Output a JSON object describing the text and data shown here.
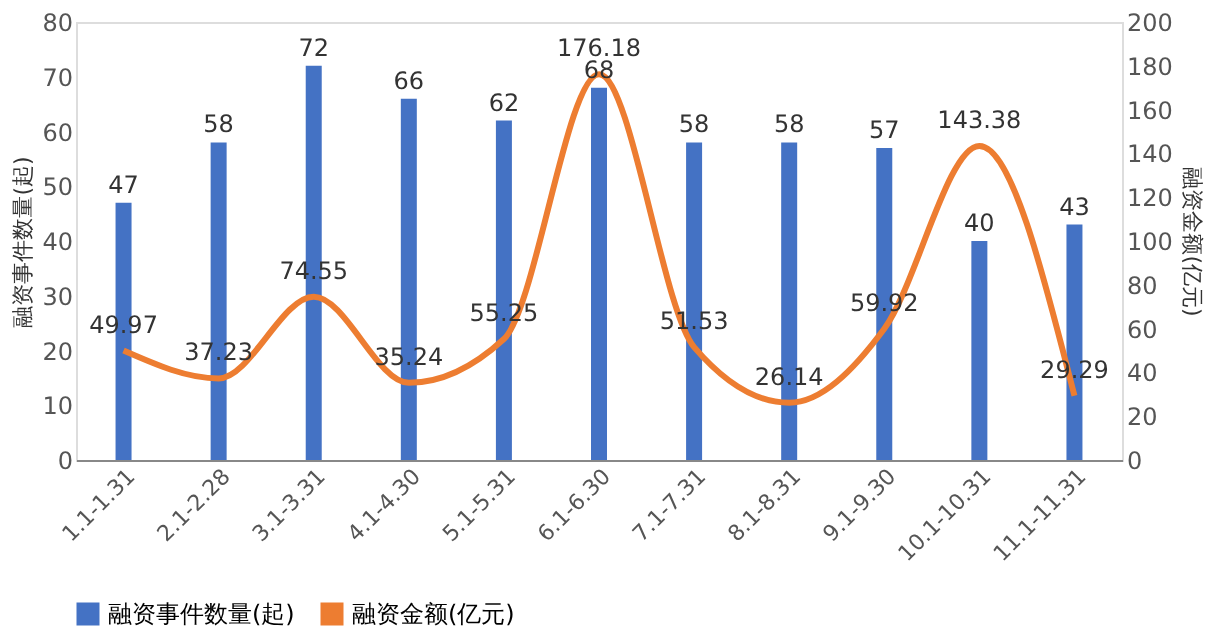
{
  "chart_data": {
    "type": "bar",
    "categories": [
      "1.1-1.31",
      "2.1-2.28",
      "3.1-3.31",
      "4.1-4.30",
      "5.1-5.31",
      "6.1-6.30",
      "7.1-7.31",
      "8.1-8.31",
      "9.1-9.30",
      "10.1-10.31",
      "11.1-11.31"
    ],
    "ylabel": "融资事件数量(起)",
    "y2label": "融资金额(亿元)",
    "ylim": [
      0,
      80
    ],
    "yticks": [
      0,
      10,
      20,
      30,
      40,
      50,
      60,
      70,
      80
    ],
    "y2lim": [
      0,
      200
    ],
    "y2ticks": [
      0,
      20,
      40,
      60,
      80,
      100,
      120,
      140,
      160,
      180,
      200
    ],
    "series": [
      {
        "name": "融资事件数量(起)",
        "color": "#4472c4",
        "values": [
          47,
          58,
          72,
          66,
          62,
          68,
          58,
          58,
          57,
          40,
          43
        ]
      },
      {
        "name": "融资金额(亿元)",
        "type": "line",
        "axis": "y2",
        "color": "#ed7d31",
        "values": [
          49.97,
          37.23,
          74.55,
          35.24,
          55.25,
          176.18,
          51.53,
          26.14,
          59.92,
          143.38,
          29.29
        ]
      }
    ],
    "data_labels": true,
    "grid": false,
    "legend": "bottom",
    "marker": "none",
    "line_style": "solid"
  }
}
